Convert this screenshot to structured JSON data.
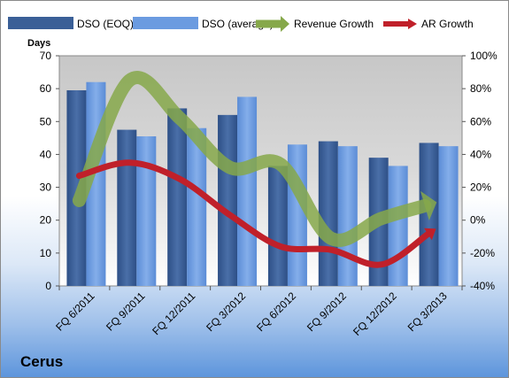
{
  "chart_data": {
    "type": "bar",
    "categories": [
      "FQ 6/2011",
      "FQ 9/2011",
      "FQ 12/2011",
      "FQ 3/2012",
      "FQ 6/2012",
      "FQ 9/2012",
      "FQ 12/2012",
      "FQ 3/2013"
    ],
    "series": [
      {
        "name": "DSO (EOQ)",
        "type": "bar",
        "axis": "left",
        "color": "#3a5f97",
        "values": [
          59.5,
          47.5,
          54,
          52,
          36.5,
          44,
          39,
          43.5
        ]
      },
      {
        "name": "DSO (average)",
        "type": "bar",
        "axis": "left",
        "color": "#6b9be0",
        "values": [
          62,
          45.5,
          48,
          57.5,
          43,
          42.5,
          36.5,
          42.5
        ]
      },
      {
        "name": "Revenue Growth",
        "type": "line",
        "axis": "right",
        "color": "#86a84a",
        "values": [
          12,
          85,
          62,
          32,
          34,
          -11,
          1,
          10
        ]
      },
      {
        "name": "AR Growth",
        "type": "line",
        "axis": "right",
        "color": "#c0202a",
        "values": [
          27,
          35,
          25,
          3,
          -16,
          -18,
          -27,
          -7
        ]
      }
    ],
    "ylabel": "Days",
    "ylim": [
      0,
      70
    ],
    "yticks": [
      0,
      10,
      20,
      30,
      40,
      50,
      60,
      70
    ],
    "y2lim": [
      -40,
      100
    ],
    "y2ticks": [
      "-40%",
      "-20%",
      "0%",
      "20%",
      "40%",
      "60%",
      "80%",
      "100%"
    ],
    "legend_position": "top",
    "grid": false,
    "plot_background": "gradient gray"
  },
  "company_label": "Cerus"
}
